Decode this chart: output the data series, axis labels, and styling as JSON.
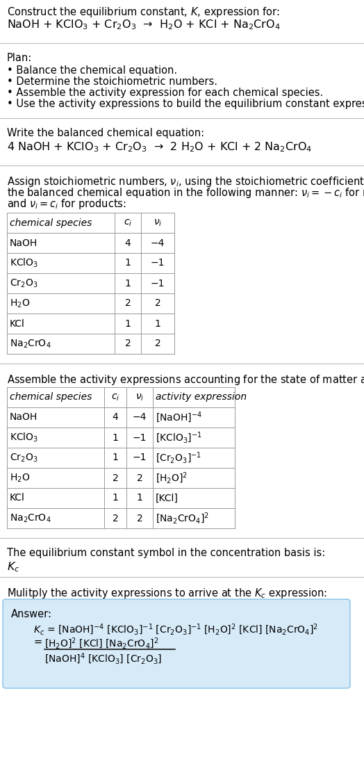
{
  "bg_color": "#ffffff",
  "text_color": "#000000",
  "font_size_body": 10.5,
  "font_size_eq": 11.5,
  "font_size_table": 10,
  "title_line1": "Construct the equilibrium constant, $K$, expression for:",
  "title_line2": "NaOH + KClO$_3$ + Cr$_2$O$_3$  →  H$_2$O + KCl + Na$_2$CrO$_4$",
  "plan_header": "Plan:",
  "plan_items": [
    "• Balance the chemical equation.",
    "• Determine the stoichiometric numbers.",
    "• Assemble the activity expression for each chemical species.",
    "• Use the activity expressions to build the equilibrium constant expression."
  ],
  "balanced_header": "Write the balanced chemical equation:",
  "balanced_eq": "4 NaOH + KClO$_3$ + Cr$_2$O$_3$  →  2 H$_2$O + KCl + 2 Na$_2$CrO$_4$",
  "stoich_header_lines": [
    "Assign stoichiometric numbers, $\\nu_i$, using the stoichiometric coefficients, $c_i$, from",
    "the balanced chemical equation in the following manner: $\\nu_i = -c_i$ for reactants",
    "and $\\nu_i = c_i$ for products:"
  ],
  "table1_col_species": "chemical species",
  "table1_col_ci": "$c_i$",
  "table1_col_vi": "$\\nu_i$",
  "table1_data": [
    [
      "NaOH",
      "4",
      "−4"
    ],
    [
      "KClO$_3$",
      "1",
      "−1"
    ],
    [
      "Cr$_2$O$_3$",
      "1",
      "−1"
    ],
    [
      "H$_2$O",
      "2",
      "2"
    ],
    [
      "KCl",
      "1",
      "1"
    ],
    [
      "Na$_2$CrO$_4$",
      "2",
      "2"
    ]
  ],
  "activity_header": "Assemble the activity expressions accounting for the state of matter and $\\nu_i$:",
  "table2_col_species": "chemical species",
  "table2_col_ci": "$c_i$",
  "table2_col_vi": "$\\nu_i$",
  "table2_col_act": "activity expression",
  "table2_data": [
    [
      "NaOH",
      "4",
      "−4",
      "[NaOH]$^{-4}$"
    ],
    [
      "KClO$_3$",
      "1",
      "−1",
      "[KClO$_3$]$^{-1}$"
    ],
    [
      "Cr$_2$O$_3$",
      "1",
      "−1",
      "[Cr$_2$O$_3$]$^{-1}$"
    ],
    [
      "H$_2$O",
      "2",
      "2",
      "[H$_2$O]$^2$"
    ],
    [
      "KCl",
      "1",
      "1",
      "[KCl]"
    ],
    [
      "Na$_2$CrO$_4$",
      "2",
      "2",
      "[Na$_2$CrO$_4$]$^2$"
    ]
  ],
  "kc_header": "The equilibrium constant symbol in the concentration basis is:",
  "kc_symbol": "$K_c$",
  "multiply_header": "Mulitply the activity expressions to arrive at the $K_c$ expression:",
  "answer_label": "Answer:",
  "answer_line1": "$K_c$ = [NaOH]$^{-4}$ [KClO$_3$]$^{-1}$ [Cr$_2$O$_3$]$^{-1}$ [H$_2$O]$^2$ [KCl] [Na$_2$CrO$_4$]$^2$",
  "answer_eq_lhs": "= ",
  "answer_num": "[H$_2$O]$^2$ [KCl] [Na$_2$CrO$_4$]$^2$",
  "answer_den": "[NaOH]$^4$ [KClO$_3$] [Cr$_2$O$_3$]",
  "answer_box_color": "#d6eaf8",
  "answer_box_edge": "#85c1e9",
  "divider_color": "#bbbbbb",
  "table_line_color": "#999999"
}
